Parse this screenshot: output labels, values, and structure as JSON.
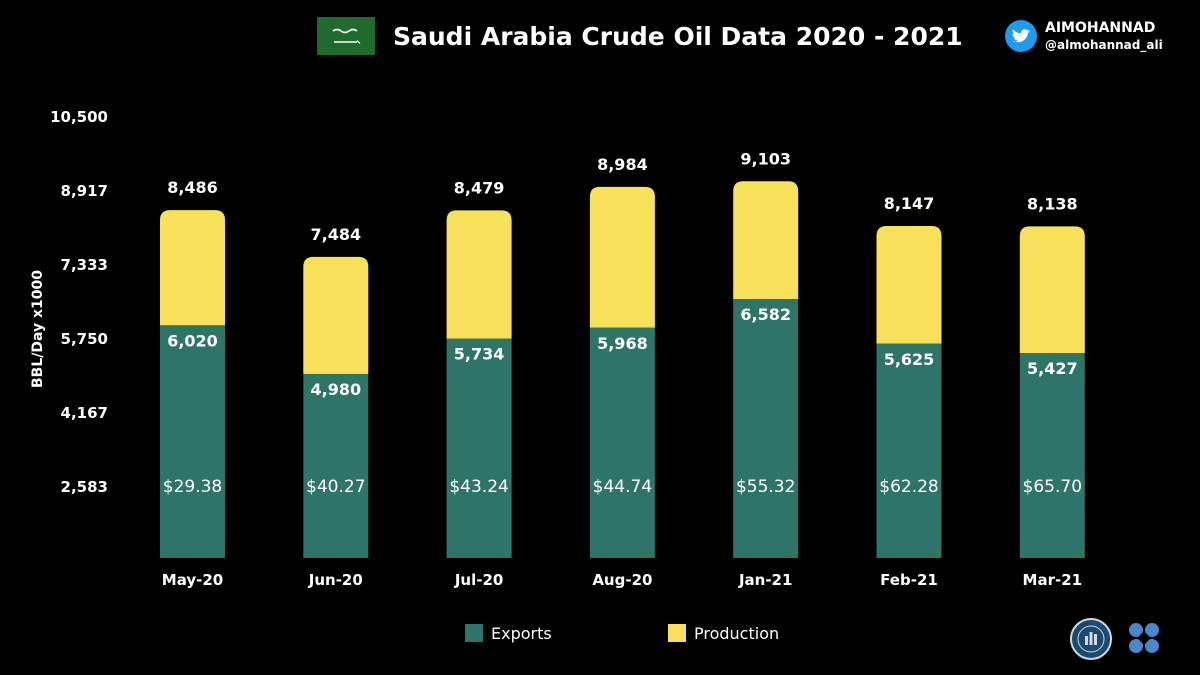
{
  "header": {
    "title": "Saudi Arabia Crude Oil Data 2020 - 2021",
    "account_name": "AIMOHANNAD",
    "account_handle": "@almohannad_ali"
  },
  "colors": {
    "exports": "#2f7468",
    "production": "#f7e15a",
    "background": "#000000",
    "flag_green": "#1f6b2f"
  },
  "chart_data": {
    "type": "bar",
    "stacked": true,
    "categories": [
      "May-20",
      "Jun-20",
      "Jul-20",
      "Aug-20",
      "Jan-21",
      "Feb-21",
      "Mar-21"
    ],
    "series": [
      {
        "name": "Exports",
        "values": [
          6020,
          4980,
          5734,
          5968,
          6582,
          5625,
          5427
        ]
      },
      {
        "name": "Production",
        "values": [
          8486,
          7484,
          8479,
          8984,
          9103,
          8147,
          8138
        ]
      }
    ],
    "export_labels": [
      "6,020",
      "4,980",
      "5,734",
      "5,968",
      "6,582",
      "5,625",
      "5,427"
    ],
    "production_labels": [
      "8,486",
      "7,484",
      "8,479",
      "8,984",
      "9,103",
      "8,147",
      "8,138"
    ],
    "price_labels": [
      "$29.38",
      "$40.27",
      "$43.24",
      "$44.74",
      "$55.32",
      "$62.28",
      "$65.70"
    ],
    "ylabel": "BBL/Day x1000",
    "yticks": [
      2583,
      4167,
      5750,
      7333,
      8917,
      10500
    ],
    "ytick_labels": [
      "2,583",
      "4,167",
      "5,750",
      "7,333",
      "8,917",
      "10,500"
    ],
    "legend": [
      "Exports",
      "Production"
    ],
    "legend_position": "bottom",
    "grid": false
  }
}
